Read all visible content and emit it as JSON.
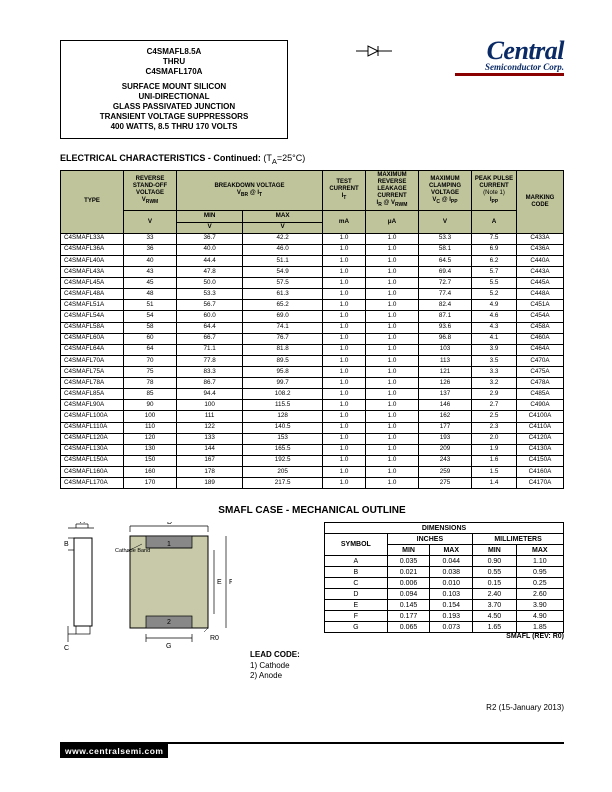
{
  "title": {
    "line1": "C4SMAFL8.5A",
    "line2": "THRU",
    "line3": "C4SMAFL170A",
    "desc1": "SURFACE MOUNT SILICON",
    "desc2": "UNI-DIRECTIONAL",
    "desc3": "GLASS PASSIVATED JUNCTION",
    "desc4": "TRANSIENT VOLTAGE SUPPRESSORS",
    "desc5": "400 WATTS, 8.5 THRU 170 VOLTS"
  },
  "logo": {
    "word": "Central",
    "sub": "Semiconductor Corp."
  },
  "section": {
    "title": "ELECTRICAL CHARACTERISTICS - Continued:",
    "cond": "(T",
    "condSub": "A",
    "condRest": "=25°C)"
  },
  "headers": {
    "type": "TYPE",
    "vrwm": "REVERSE STAND-OFF VOLTAGE",
    "vrwmSym": "V",
    "vrwmSub": "RWM",
    "vbr": "BREAKDOWN VOLTAGE",
    "vbrSym": "V",
    "vbrSub": "BR",
    "at": " @ I",
    "atSub": "T",
    "it": "TEST CURRENT",
    "itSym": "I",
    "itSub": "T",
    "ir": "MAXIMUM REVERSE LEAKAGE CURRENT",
    "irSym": "I",
    "irSub": "R",
    "irAt": " @ V",
    "irAtSub": "RWM",
    "vc": "MAXIMUM CLAMPING VOLTAGE",
    "vcSym": "V",
    "vcSub": "C",
    "vcAt": " @ I",
    "vcAtSub": "PP",
    "ipp": "PEAK PULSE CURRENT",
    "note": "(Note 1)",
    "ippSym": "I",
    "ippSub": "PP",
    "mark": "MARKING CODE",
    "unitV": "V",
    "min": "MIN",
    "max": "MAX",
    "unitmA": "mA",
    "unitμA": "μA",
    "unitA": "A"
  },
  "rows": [
    [
      "C4SMAFL33A",
      "33",
      "36.7",
      "42.2",
      "1.0",
      "1.0",
      "53.3",
      "7.5",
      "C433A"
    ],
    [
      "C4SMAFL36A",
      "36",
      "40.0",
      "46.0",
      "1.0",
      "1.0",
      "58.1",
      "6.9",
      "C436A"
    ],
    [
      "C4SMAFL40A",
      "40",
      "44.4",
      "51.1",
      "1.0",
      "1.0",
      "64.5",
      "6.2",
      "C440A"
    ],
    [
      "C4SMAFL43A",
      "43",
      "47.8",
      "54.9",
      "1.0",
      "1.0",
      "69.4",
      "5.7",
      "C443A"
    ],
    [
      "C4SMAFL45A",
      "45",
      "50.0",
      "57.5",
      "1.0",
      "1.0",
      "72.7",
      "5.5",
      "C445A"
    ],
    [
      "C4SMAFL48A",
      "48",
      "53.3",
      "61.3",
      "1.0",
      "1.0",
      "77.4",
      "5.2",
      "C448A"
    ],
    [
      "C4SMAFL51A",
      "51",
      "56.7",
      "65.2",
      "1.0",
      "1.0",
      "82.4",
      "4.9",
      "C451A"
    ],
    [
      "C4SMAFL54A",
      "54",
      "60.0",
      "69.0",
      "1.0",
      "1.0",
      "87.1",
      "4.6",
      "C454A"
    ],
    [
      "C4SMAFL58A",
      "58",
      "64.4",
      "74.1",
      "1.0",
      "1.0",
      "93.6",
      "4.3",
      "C458A"
    ],
    [
      "C4SMAFL60A",
      "60",
      "66.7",
      "76.7",
      "1.0",
      "1.0",
      "96.8",
      "4.1",
      "C460A"
    ],
    [
      "C4SMAFL64A",
      "64",
      "71.1",
      "81.8",
      "1.0",
      "1.0",
      "103",
      "3.9",
      "C464A"
    ],
    [
      "C4SMAFL70A",
      "70",
      "77.8",
      "89.5",
      "1.0",
      "1.0",
      "113",
      "3.5",
      "C470A"
    ],
    [
      "C4SMAFL75A",
      "75",
      "83.3",
      "95.8",
      "1.0",
      "1.0",
      "121",
      "3.3",
      "C475A"
    ],
    [
      "C4SMAFL78A",
      "78",
      "86.7",
      "99.7",
      "1.0",
      "1.0",
      "126",
      "3.2",
      "C478A"
    ],
    [
      "C4SMAFL85A",
      "85",
      "94.4",
      "108.2",
      "1.0",
      "1.0",
      "137",
      "2.9",
      "C485A"
    ],
    [
      "C4SMAFL90A",
      "90",
      "100",
      "115.5",
      "1.0",
      "1.0",
      "146",
      "2.7",
      "C490A"
    ],
    [
      "C4SMAFL100A",
      "100",
      "111",
      "128",
      "1.0",
      "1.0",
      "162",
      "2.5",
      "C4100A"
    ],
    [
      "C4SMAFL110A",
      "110",
      "122",
      "140.5",
      "1.0",
      "1.0",
      "177",
      "2.3",
      "C4110A"
    ],
    [
      "C4SMAFL120A",
      "120",
      "133",
      "153",
      "1.0",
      "1.0",
      "193",
      "2.0",
      "C4120A"
    ],
    [
      "C4SMAFL130A",
      "130",
      "144",
      "165.5",
      "1.0",
      "1.0",
      "209",
      "1.9",
      "C4130A"
    ],
    [
      "C4SMAFL150A",
      "150",
      "167",
      "192.5",
      "1.0",
      "1.0",
      "243",
      "1.6",
      "C4150A"
    ],
    [
      "C4SMAFL160A",
      "160",
      "178",
      "205",
      "1.0",
      "1.0",
      "259",
      "1.5",
      "C4160A"
    ],
    [
      "C4SMAFL170A",
      "170",
      "189",
      "217.5",
      "1.0",
      "1.0",
      "275",
      "1.4",
      "C4170A"
    ]
  ],
  "mech": {
    "title": "SMAFL CASE - MECHANICAL OUTLINE",
    "dimTitle": "DIMENSIONS",
    "inches": "INCHES",
    "mm": "MILLIMETERS",
    "symbol": "SYMBOL",
    "min": "MIN",
    "max": "MAX",
    "rows": [
      [
        "A",
        "0.035",
        "0.044",
        "0.90",
        "1.10"
      ],
      [
        "B",
        "0.021",
        "0.038",
        "0.55",
        "0.95"
      ],
      [
        "C",
        "0.006",
        "0.010",
        "0.15",
        "0.25"
      ],
      [
        "D",
        "0.094",
        "0.103",
        "2.40",
        "2.60"
      ],
      [
        "E",
        "0.145",
        "0.154",
        "3.70",
        "3.90"
      ],
      [
        "F",
        "0.177",
        "0.193",
        "4.50",
        "4.90"
      ],
      [
        "G",
        "0.065",
        "0.073",
        "1.65",
        "1.85"
      ]
    ],
    "rev": "SMAFL (REV: R0)",
    "leadTitle": "LEAD CODE:",
    "lead1": "1) Cathode",
    "lead2": "2) Anode",
    "cathodeBand": "Cathode Band",
    "labelA": "A",
    "labelB": "B",
    "labelC": "C",
    "labelD": "D",
    "labelE": "E",
    "labelF": "F",
    "labelG": "G",
    "label1": "1",
    "label2": "2",
    "labelR0": "R0"
  },
  "footer": {
    "url": "www.centralsemi.com",
    "rev": "R2 (15-January 2013)"
  }
}
